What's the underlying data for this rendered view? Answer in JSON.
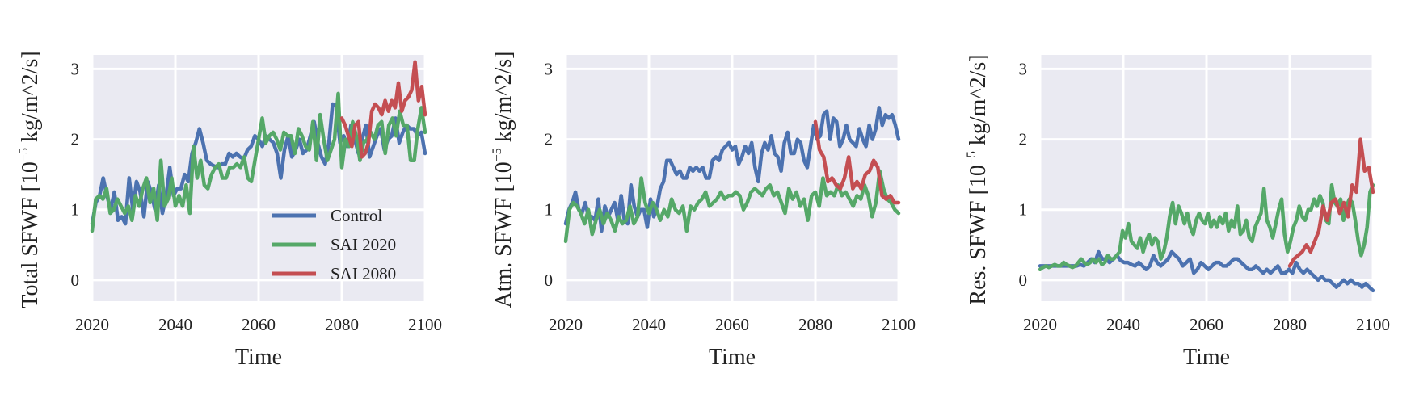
{
  "chart_data": [
    {
      "type": "line",
      "xlabel": "Time",
      "ylabel": {
        "pre": "Total SFWF [10",
        "sup": "−5",
        "post": " kg/m^2/s]"
      },
      "xlim": [
        2020,
        2100
      ],
      "ylim": [
        -0.3,
        3.2
      ],
      "xticks": [
        "2020",
        "2040",
        "2060",
        "2080",
        "2100"
      ],
      "yticks": [
        "0",
        "1",
        "2",
        "3"
      ],
      "grid": true,
      "legend": {
        "placement": "lower-right",
        "entries": [
          "Control",
          "SAI 2020",
          "SAI 2080"
        ]
      },
      "series": [
        {
          "name": "Control",
          "color": "#4c72b0",
          "x_start": 2020,
          "values": [
            0.8,
            1.1,
            1.2,
            1.45,
            1.2,
            1.0,
            1.25,
            0.85,
            0.9,
            0.8,
            1.45,
            1.0,
            1.4,
            1.25,
            0.9,
            1.4,
            1.25,
            1.0,
            1.35,
            0.95,
            1.2,
            1.6,
            1.2,
            1.3,
            1.3,
            1.5,
            1.4,
            1.8,
            1.95,
            2.15,
            1.95,
            1.7,
            1.65,
            1.62,
            1.6,
            1.65,
            1.65,
            1.8,
            1.75,
            1.8,
            1.75,
            1.72,
            1.85,
            1.9,
            2.05,
            2.0,
            1.9,
            2.05,
            2.0,
            1.95,
            1.8,
            1.45,
            1.85,
            2.05,
            1.75,
            1.85,
            2.0,
            1.8,
            1.85,
            2.05,
            2.25,
            1.95,
            1.75,
            1.65,
            1.95,
            2.5,
            2.48,
            1.95,
            2.05,
            1.9,
            2.2,
            2.0,
            1.8,
            2.0,
            2.2,
            1.75,
            1.9,
            2.05,
            2.15,
            1.85,
            2.0,
            2.05,
            2.3,
            1.95,
            2.1,
            2.2,
            2.15,
            2.15,
            2.05,
            2.1,
            1.8
          ]
        },
        {
          "name": "SAI 2020",
          "color": "#55a868",
          "x_start": 2020,
          "values": [
            0.7,
            1.15,
            1.2,
            1.15,
            1.3,
            0.95,
            1.0,
            1.15,
            1.05,
            0.95,
            1.05,
            0.85,
            1.2,
            1.05,
            1.3,
            1.45,
            1.1,
            1.3,
            0.85,
            1.7,
            1.05,
            1.15,
            1.45,
            1.05,
            1.2,
            1.05,
            1.35,
            0.95,
            1.9,
            1.45,
            1.7,
            1.35,
            1.3,
            1.5,
            1.6,
            1.65,
            1.45,
            1.45,
            1.6,
            1.6,
            1.65,
            1.6,
            1.75,
            1.45,
            1.4,
            1.7,
            2.0,
            2.3,
            1.95,
            2.05,
            2.1,
            2.0,
            1.85,
            2.1,
            2.05,
            2.05,
            1.8,
            2.15,
            2.05,
            1.9,
            1.85,
            2.25,
            1.7,
            2.35,
            2.0,
            1.7,
            1.85,
            2.0,
            2.65,
            1.6,
            2.0,
            1.9,
            2.25,
            2.05,
            1.7,
            1.95,
            2.0,
            2.1,
            2.0,
            2.2,
            2.25,
            1.8,
            2.2,
            2.3,
            2.05,
            2.4,
            2.2,
            2.2,
            1.7,
            1.7,
            2.15,
            2.45,
            2.1
          ]
        },
        {
          "name": "SAI 2080",
          "color": "#c44e52",
          "x_start": 2080,
          "values": [
            2.3,
            2.2,
            2.05,
            1.9,
            2.2,
            2.25,
            1.75,
            1.8,
            1.95,
            2.4,
            2.5,
            2.45,
            2.35,
            2.55,
            2.4,
            2.55,
            2.45,
            2.8,
            2.4,
            2.55,
            2.6,
            2.7,
            3.1,
            2.55,
            2.75,
            2.35
          ]
        }
      ]
    },
    {
      "type": "line",
      "xlabel": "Time",
      "ylabel": {
        "pre": "Atm. SFWF [10",
        "sup": "−5",
        "post": " kg/m^2/s]"
      },
      "xlim": [
        2020,
        2100
      ],
      "ylim": [
        -0.3,
        3.2
      ],
      "xticks": [
        "2020",
        "2040",
        "2060",
        "2080",
        "2100"
      ],
      "yticks": [
        "0",
        "1",
        "2",
        "3"
      ],
      "grid": true,
      "series": [
        {
          "name": "Control",
          "color": "#4c72b0",
          "x_start": 2020,
          "values": [
            0.8,
            1.0,
            1.1,
            1.25,
            1.0,
            0.95,
            1.1,
            0.9,
            0.9,
            0.85,
            1.15,
            0.7,
            1.05,
            0.9,
            1.0,
            1.1,
            0.85,
            1.2,
            0.85,
            0.8,
            1.35,
            1.05,
            0.9,
            1.0,
            1.0,
            0.75,
            1.15,
            0.9,
            1.05,
            1.3,
            1.4,
            1.7,
            1.7,
            1.6,
            1.5,
            1.55,
            1.45,
            1.45,
            1.6,
            1.55,
            1.6,
            1.55,
            1.6,
            1.45,
            1.45,
            1.7,
            1.75,
            1.7,
            1.85,
            1.9,
            1.95,
            1.85,
            1.9,
            1.65,
            1.75,
            1.9,
            1.8,
            1.95,
            1.6,
            1.4,
            1.8,
            1.95,
            1.85,
            2.05,
            1.8,
            1.75,
            1.55,
            1.95,
            2.1,
            1.8,
            1.8,
            2.0,
            1.95,
            1.7,
            1.6,
            1.9,
            2.2,
            2.0,
            2.05,
            2.35,
            2.4,
            2.0,
            2.3,
            2.25,
            1.9,
            2.0,
            2.2,
            2.0,
            1.95,
            1.9,
            2.15,
            2.0,
            1.9,
            2.2,
            2.0,
            2.15,
            2.45,
            2.2,
            2.35,
            2.3,
            2.35,
            2.2,
            2.0
          ]
        },
        {
          "name": "SAI 2020",
          "color": "#55a868",
          "x_start": 2020,
          "values": [
            0.55,
            1.0,
            1.1,
            1.05,
            0.95,
            0.8,
            1.0,
            0.65,
            0.85,
            1.0,
            0.8,
            0.95,
            0.85,
            0.7,
            0.9,
            0.8,
            0.85,
            1.05,
            0.8,
            0.9,
            1.45,
            1.1,
            0.95,
            1.1,
            1.0,
            0.85,
            1.0,
            0.9,
            1.15,
            1.0,
            0.95,
            1.05,
            0.7,
            1.05,
            1.0,
            1.1,
            1.15,
            1.25,
            1.05,
            1.1,
            1.15,
            1.25,
            1.15,
            1.2,
            1.2,
            1.25,
            1.2,
            1.0,
            1.1,
            1.25,
            1.3,
            1.25,
            1.2,
            1.3,
            1.35,
            1.2,
            1.25,
            1.1,
            0.95,
            1.3,
            1.15,
            1.25,
            1.05,
            1.15,
            0.85,
            1.2,
            1.25,
            1.05,
            1.45,
            1.2,
            1.25,
            1.2,
            1.35,
            1.2,
            1.25,
            1.15,
            1.05,
            1.2,
            1.15,
            1.35,
            1.2,
            0.9,
            1.1,
            1.55,
            1.3,
            1.15,
            1.1,
            1.0,
            0.95
          ]
        },
        {
          "name": "SAI 2080",
          "color": "#c44e52",
          "x_start": 2080,
          "values": [
            2.25,
            1.85,
            1.75,
            1.4,
            1.45,
            1.35,
            1.3,
            1.45,
            1.75,
            1.3,
            1.4,
            1.3,
            1.5,
            1.55,
            1.7,
            1.6,
            1.2,
            1.15,
            1.2,
            1.1,
            1.1
          ]
        }
      ]
    },
    {
      "type": "line",
      "xlabel": "Time",
      "ylabel": {
        "pre": "Res. SFWF [10",
        "sup": "−5",
        "post": " kg/m^2/s]"
      },
      "xlim": [
        2020,
        2100
      ],
      "ylim": [
        -0.3,
        3.2
      ],
      "xticks": [
        "2020",
        "2040",
        "2060",
        "2080",
        "2100"
      ],
      "yticks": [
        "0",
        "1",
        "2",
        "3"
      ],
      "grid": true,
      "series": [
        {
          "name": "Control",
          "color": "#4c72b0",
          "x_start": 2020,
          "values": [
            0.2,
            0.2,
            0.2,
            0.2,
            0.2,
            0.2,
            0.2,
            0.2,
            0.2,
            0.2,
            0.2,
            0.22,
            0.2,
            0.25,
            0.3,
            0.25,
            0.4,
            0.3,
            0.3,
            0.25,
            0.3,
            0.35,
            0.28,
            0.25,
            0.25,
            0.22,
            0.2,
            0.25,
            0.2,
            0.15,
            0.2,
            0.35,
            0.25,
            0.2,
            0.25,
            0.3,
            0.4,
            0.35,
            0.3,
            0.2,
            0.25,
            0.3,
            0.1,
            0.15,
            0.25,
            0.2,
            0.15,
            0.2,
            0.25,
            0.25,
            0.2,
            0.2,
            0.25,
            0.3,
            0.3,
            0.25,
            0.2,
            0.15,
            0.15,
            0.2,
            0.15,
            0.1,
            0.15,
            0.1,
            0.15,
            0.2,
            0.1,
            0.1,
            0.15,
            0.1,
            0.25,
            0.15,
            0.1,
            0.15,
            0.1,
            0.05,
            0.0,
            0.05,
            0.0,
            0.0,
            -0.05,
            -0.1,
            -0.05,
            0.0,
            -0.05,
            0.0,
            -0.05,
            -0.05,
            -0.1,
            -0.05,
            -0.1,
            -0.15
          ]
        },
        {
          "name": "SAI 2020",
          "color": "#55a868",
          "x_start": 2020,
          "values": [
            0.15,
            0.18,
            0.2,
            0.18,
            0.2,
            0.22,
            0.2,
            0.2,
            0.25,
            0.22,
            0.2,
            0.18,
            0.2,
            0.25,
            0.3,
            0.25,
            0.22,
            0.25,
            0.3,
            0.25,
            0.3,
            0.22,
            0.25,
            0.35,
            0.3,
            0.3,
            0.35,
            0.4,
            0.7,
            0.6,
            0.8,
            0.55,
            0.5,
            0.45,
            0.6,
            0.4,
            0.55,
            0.65,
            0.5,
            0.6,
            0.55,
            0.3,
            0.4,
            0.6,
            0.9,
            1.1,
            0.8,
            1.05,
            0.95,
            0.8,
            0.95,
            0.75,
            0.65,
            0.85,
            0.95,
            0.85,
            0.8,
            0.95,
            0.75,
            0.85,
            0.75,
            0.9,
            0.8,
            0.95,
            0.7,
            0.85,
            0.75,
            1.05,
            0.65,
            0.7,
            0.85,
            0.6,
            0.55,
            0.75,
            0.85,
            0.95,
            1.3,
            0.85,
            0.75,
            0.6,
            0.8,
            1.0,
            1.15,
            0.65,
            0.4,
            0.55,
            0.75,
            0.85,
            1.05,
            0.9,
            0.85,
            1.0,
            1.0,
            1.15,
            1.05,
            1.2,
            1.1,
            0.85,
            0.8,
            1.35,
            1.1,
            1.05,
            1.15,
            0.85,
            1.05,
            1.15,
            1.1,
            0.85,
            0.55,
            0.35,
            0.5,
            0.75,
            1.25,
            1.35
          ]
        },
        {
          "name": "SAI 2080",
          "color": "#c44e52",
          "x_start": 2080,
          "values": [
            0.2,
            0.3,
            0.35,
            0.4,
            0.5,
            0.4,
            0.55,
            0.7,
            1.05,
            0.85,
            1.1,
            1.15,
            0.95,
            1.1,
            0.9,
            1.35,
            1.25,
            2.0,
            1.55,
            1.6,
            1.25
          ]
        }
      ]
    }
  ]
}
